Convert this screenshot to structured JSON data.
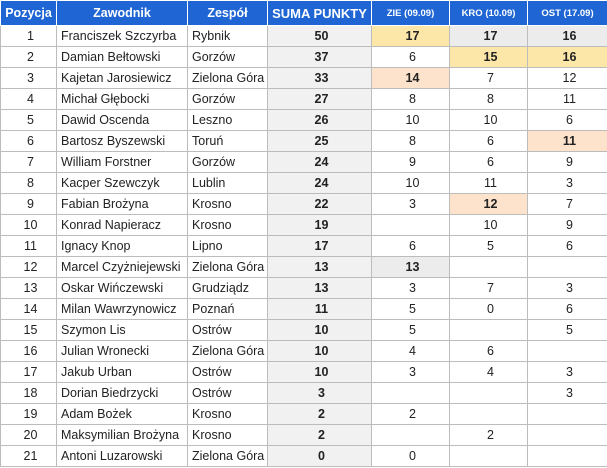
{
  "table": {
    "headers": {
      "position": "Pozycja",
      "rider": "Zawodnik",
      "team": "Zespół",
      "total": "SUMA PUNKTY",
      "round1": "ZIE (09.09)",
      "round2": "KRO (10.09)",
      "round3": "OST (17.09)"
    },
    "highlight_colors": {
      "yellow": "#fde7a8",
      "peach": "#fde3cc",
      "grey": "#ececec",
      "header": "#1f66d4"
    },
    "rows": [
      {
        "pos": "1",
        "name": "Franciszek Szczyrba",
        "team": "Rybnik",
        "total": "50",
        "r": [
          "17",
          "17",
          "16"
        ],
        "hl": [
          "yellow",
          "grey",
          "grey"
        ]
      },
      {
        "pos": "2",
        "name": "Damian Bełtowski",
        "team": "Gorzów",
        "total": "37",
        "r": [
          "6",
          "15",
          "16"
        ],
        "hl": [
          "",
          "yellow",
          "yellow"
        ]
      },
      {
        "pos": "3",
        "name": "Kajetan Jarosiewicz",
        "team": "Zielona Góra",
        "total": "33",
        "r": [
          "14",
          "7",
          "12"
        ],
        "hl": [
          "peach",
          "",
          ""
        ]
      },
      {
        "pos": "4",
        "name": "Michał Głębocki",
        "team": "Gorzów",
        "total": "27",
        "r": [
          "8",
          "8",
          "11"
        ],
        "hl": [
          "",
          "",
          ""
        ]
      },
      {
        "pos": "5",
        "name": "Dawid Oscenda",
        "team": "Leszno",
        "total": "26",
        "r": [
          "10",
          "10",
          "6"
        ],
        "hl": [
          "",
          "",
          ""
        ]
      },
      {
        "pos": "6",
        "name": "Bartosz Byszewski",
        "team": "Toruń",
        "total": "25",
        "r": [
          "8",
          "6",
          "11"
        ],
        "hl": [
          "",
          "",
          "peach"
        ]
      },
      {
        "pos": "7",
        "name": "William Forstner",
        "team": "Gorzów",
        "total": "24",
        "r": [
          "9",
          "6",
          "9"
        ],
        "hl": [
          "",
          "",
          ""
        ]
      },
      {
        "pos": "8",
        "name": "Kacper Szewczyk",
        "team": "Lublin",
        "total": "24",
        "r": [
          "10",
          "11",
          "3"
        ],
        "hl": [
          "",
          "",
          ""
        ]
      },
      {
        "pos": "9",
        "name": "Fabian Brożyna",
        "team": "Krosno",
        "total": "22",
        "r": [
          "3",
          "12",
          "7"
        ],
        "hl": [
          "",
          "peach",
          ""
        ]
      },
      {
        "pos": "10",
        "name": "Konrad Napieracz",
        "team": "Krosno",
        "total": "19",
        "r": [
          "",
          "10",
          "9"
        ],
        "hl": [
          "",
          "",
          ""
        ]
      },
      {
        "pos": "11",
        "name": "Ignacy Knop",
        "team": "Lipno",
        "total": "17",
        "r": [
          "6",
          "5",
          "6"
        ],
        "hl": [
          "",
          "",
          ""
        ]
      },
      {
        "pos": "12",
        "name": "Marcel Czyżniejewski",
        "team": "Zielona Góra",
        "total": "13",
        "r": [
          "13",
          "",
          ""
        ],
        "hl": [
          "grey",
          "",
          ""
        ]
      },
      {
        "pos": "13",
        "name": "Oskar Wińczewski",
        "team": "Grudziądz",
        "total": "13",
        "r": [
          "3",
          "7",
          "3"
        ],
        "hl": [
          "",
          "",
          ""
        ]
      },
      {
        "pos": "14",
        "name": "Milan Wawrzynowicz",
        "team": "Poznań",
        "total": "11",
        "r": [
          "5",
          "0",
          "6"
        ],
        "hl": [
          "",
          "",
          ""
        ]
      },
      {
        "pos": "15",
        "name": "Szymon Lis",
        "team": "Ostrów",
        "total": "10",
        "r": [
          "5",
          "",
          "5"
        ],
        "hl": [
          "",
          "",
          ""
        ]
      },
      {
        "pos": "16",
        "name": "Julian Wronecki",
        "team": "Zielona Góra",
        "total": "10",
        "r": [
          "4",
          "6",
          ""
        ],
        "hl": [
          "",
          "",
          ""
        ]
      },
      {
        "pos": "17",
        "name": "Jakub Urban",
        "team": "Ostrów",
        "total": "10",
        "r": [
          "3",
          "4",
          "3"
        ],
        "hl": [
          "",
          "",
          ""
        ]
      },
      {
        "pos": "18",
        "name": "Dorian Biedrzycki",
        "team": "Ostrów",
        "total": "3",
        "r": [
          "",
          "",
          "3"
        ],
        "hl": [
          "",
          "",
          ""
        ]
      },
      {
        "pos": "19",
        "name": "Adam Bożek",
        "team": "Krosno",
        "total": "2",
        "r": [
          "2",
          "",
          ""
        ],
        "hl": [
          "",
          "",
          ""
        ]
      },
      {
        "pos": "20",
        "name": "Maksymilian Brożyna",
        "team": "Krosno",
        "total": "2",
        "r": [
          "",
          "2",
          ""
        ],
        "hl": [
          "",
          "",
          ""
        ]
      },
      {
        "pos": "21",
        "name": "Antoni Luzarowski",
        "team": "Zielona Góra",
        "total": "0",
        "r": [
          "0",
          "",
          ""
        ],
        "hl": [
          "",
          "",
          ""
        ]
      }
    ]
  }
}
